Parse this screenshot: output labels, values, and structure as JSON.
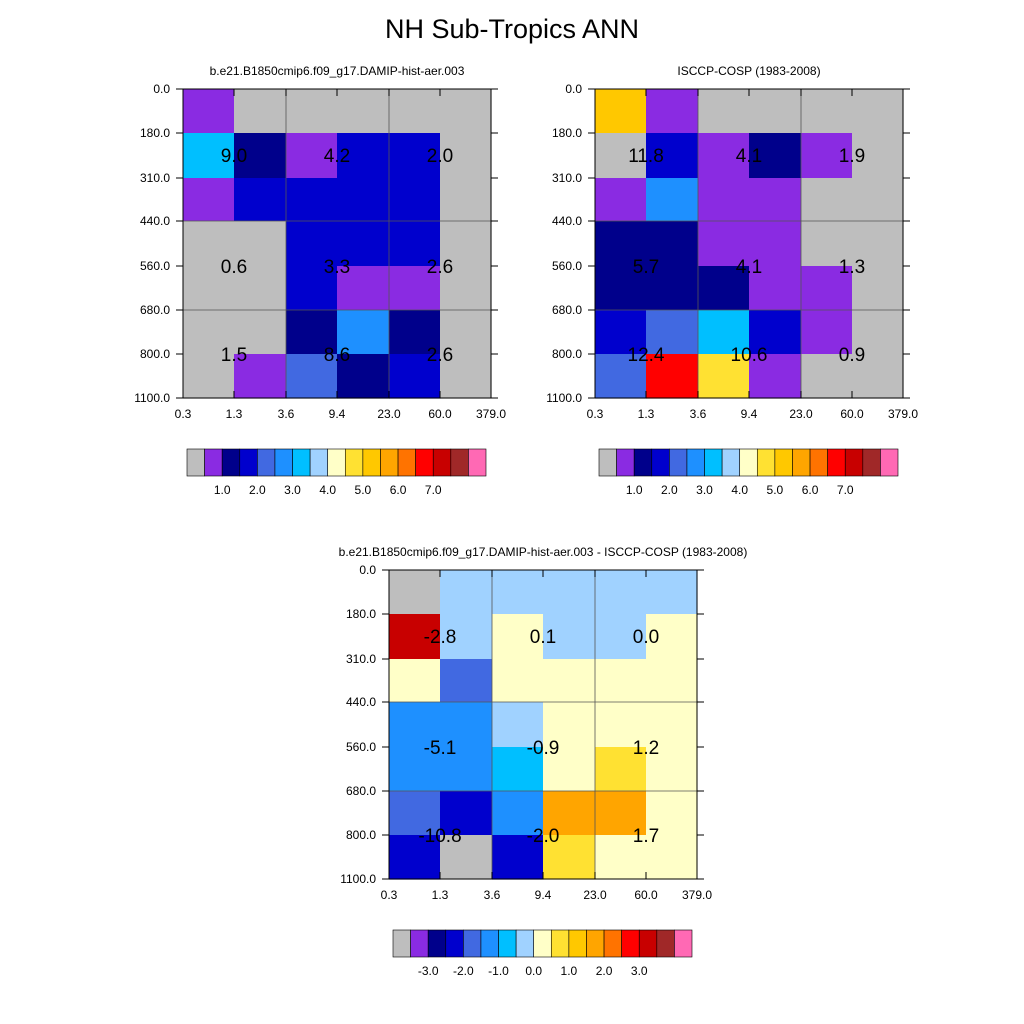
{
  "figure": {
    "title": "NH Sub-Tropics ANN"
  },
  "chart_data": [
    {
      "type": "heatmap",
      "title": "b.e21.B1850cmip6.f09_g17.DAMIP-hist-aer.003",
      "x_ticks": [
        "0.3",
        "1.3",
        "3.6",
        "9.4",
        "23.0",
        "60.0",
        "379.0"
      ],
      "y_ticks": [
        "0.0",
        "180.0",
        "310.0",
        "440.0",
        "560.0",
        "680.0",
        "800.0",
        "1100.0"
      ],
      "cell_levels": [
        [
          1,
          0,
          0,
          0,
          0,
          0
        ],
        [
          6,
          2,
          1,
          3,
          3,
          0
        ],
        [
          1,
          3,
          3,
          3,
          3,
          0
        ],
        [
          0,
          0,
          3,
          3,
          3,
          0
        ],
        [
          0,
          0,
          3,
          1,
          1,
          0
        ],
        [
          0,
          0,
          2,
          5,
          2,
          0
        ],
        [
          0,
          1,
          4,
          2,
          3,
          0
        ]
      ],
      "annotations": [
        {
          "row_band": 0,
          "col_band": 0,
          "value": "9.0"
        },
        {
          "row_band": 0,
          "col_band": 1,
          "value": "4.2"
        },
        {
          "row_band": 0,
          "col_band": 2,
          "value": "2.0"
        },
        {
          "row_band": 1,
          "col_band": 0,
          "value": "0.6"
        },
        {
          "row_band": 1,
          "col_band": 1,
          "value": "3.3"
        },
        {
          "row_band": 1,
          "col_band": 2,
          "value": "2.6"
        },
        {
          "row_band": 2,
          "col_band": 0,
          "value": "1.5"
        },
        {
          "row_band": 2,
          "col_band": 1,
          "value": "8.6"
        },
        {
          "row_band": 2,
          "col_band": 2,
          "value": "2.6"
        }
      ],
      "colorbar": {
        "colors": [
          "#bebebe",
          "#8a2be2",
          "#00008b",
          "#0000cd",
          "#4169e1",
          "#1e90ff",
          "#00bfff",
          "#a0d2ff",
          "#ffffc8",
          "#ffe132",
          "#ffc800",
          "#ffa500",
          "#ff7300",
          "#ff0000",
          "#c80000",
          "#a02828",
          "#ff69b4"
        ],
        "labels": [
          "1.0",
          "2.0",
          "3.0",
          "4.0",
          "5.0",
          "6.0",
          "7.0"
        ]
      }
    },
    {
      "type": "heatmap",
      "title": "ISCCP-COSP (1983-2008)",
      "x_ticks": [
        "0.3",
        "1.3",
        "3.6",
        "9.4",
        "23.0",
        "60.0",
        "379.0"
      ],
      "y_ticks": [
        "0.0",
        "180.0",
        "310.0",
        "440.0",
        "560.0",
        "680.0",
        "800.0",
        "1100.0"
      ],
      "cell_levels": [
        [
          10,
          1,
          0,
          0,
          0,
          0
        ],
        [
          0,
          3,
          1,
          2,
          1,
          0
        ],
        [
          1,
          5,
          1,
          1,
          0,
          0
        ],
        [
          2,
          2,
          1,
          1,
          0,
          0
        ],
        [
          2,
          2,
          2,
          1,
          1,
          0
        ],
        [
          3,
          4,
          6,
          3,
          1,
          0
        ],
        [
          4,
          13,
          9,
          1,
          0,
          0
        ]
      ],
      "annotations": [
        {
          "row_band": 0,
          "col_band": 0,
          "value": "11.8"
        },
        {
          "row_band": 0,
          "col_band": 1,
          "value": "4.1"
        },
        {
          "row_band": 0,
          "col_band": 2,
          "value": "1.9"
        },
        {
          "row_band": 1,
          "col_band": 0,
          "value": "5.7"
        },
        {
          "row_band": 1,
          "col_band": 1,
          "value": "4.1"
        },
        {
          "row_band": 1,
          "col_band": 2,
          "value": "1.3"
        },
        {
          "row_band": 2,
          "col_band": 0,
          "value": "12.4"
        },
        {
          "row_band": 2,
          "col_band": 1,
          "value": "10.6"
        },
        {
          "row_band": 2,
          "col_band": 2,
          "value": "0.9"
        }
      ],
      "colorbar": {
        "colors": [
          "#bebebe",
          "#8a2be2",
          "#00008b",
          "#0000cd",
          "#4169e1",
          "#1e90ff",
          "#00bfff",
          "#a0d2ff",
          "#ffffc8",
          "#ffe132",
          "#ffc800",
          "#ffa500",
          "#ff7300",
          "#ff0000",
          "#c80000",
          "#a02828",
          "#ff69b4"
        ],
        "labels": [
          "1.0",
          "2.0",
          "3.0",
          "4.0",
          "5.0",
          "6.0",
          "7.0"
        ]
      }
    },
    {
      "type": "heatmap",
      "title": "b.e21.B1850cmip6.f09_g17.DAMIP-hist-aer.003 - ISCCP-COSP (1983-2008)",
      "x_ticks": [
        "0.3",
        "1.3",
        "3.6",
        "9.4",
        "23.0",
        "60.0",
        "379.0"
      ],
      "y_ticks": [
        "0.0",
        "180.0",
        "310.0",
        "440.0",
        "560.0",
        "680.0",
        "800.0",
        "1100.0"
      ],
      "cell_levels": [
        [
          0,
          7,
          7,
          7,
          7,
          7
        ],
        [
          14,
          7,
          8,
          7,
          7,
          8
        ],
        [
          8,
          4,
          8,
          8,
          8,
          8
        ],
        [
          5,
          5,
          7,
          8,
          8,
          8
        ],
        [
          5,
          5,
          6,
          8,
          9,
          8
        ],
        [
          4,
          3,
          5,
          11,
          11,
          8
        ],
        [
          3,
          0,
          3,
          9,
          8,
          8
        ]
      ],
      "annotations": [
        {
          "row_band": 0,
          "col_band": 0,
          "value": "-2.8"
        },
        {
          "row_band": 0,
          "col_band": 1,
          "value": "0.1"
        },
        {
          "row_band": 0,
          "col_band": 2,
          "value": "0.0"
        },
        {
          "row_band": 1,
          "col_band": 0,
          "value": "-5.1"
        },
        {
          "row_band": 1,
          "col_band": 1,
          "value": "-0.9"
        },
        {
          "row_band": 1,
          "col_band": 2,
          "value": "1.2"
        },
        {
          "row_band": 2,
          "col_band": 0,
          "value": "-10.8"
        },
        {
          "row_band": 2,
          "col_band": 1,
          "value": "-2.0"
        },
        {
          "row_band": 2,
          "col_band": 2,
          "value": "1.7"
        }
      ],
      "colorbar": {
        "colors": [
          "#bebebe",
          "#8a2be2",
          "#00008b",
          "#0000cd",
          "#4169e1",
          "#1e90ff",
          "#00bfff",
          "#a0d2ff",
          "#ffffc8",
          "#ffe132",
          "#ffc800",
          "#ffa500",
          "#ff7300",
          "#ff0000",
          "#c80000",
          "#a02828",
          "#ff69b4"
        ],
        "labels": [
          "-3.0",
          "-2.0",
          "-1.0",
          "0.0",
          "1.0",
          "2.0",
          "3.0"
        ]
      }
    }
  ]
}
